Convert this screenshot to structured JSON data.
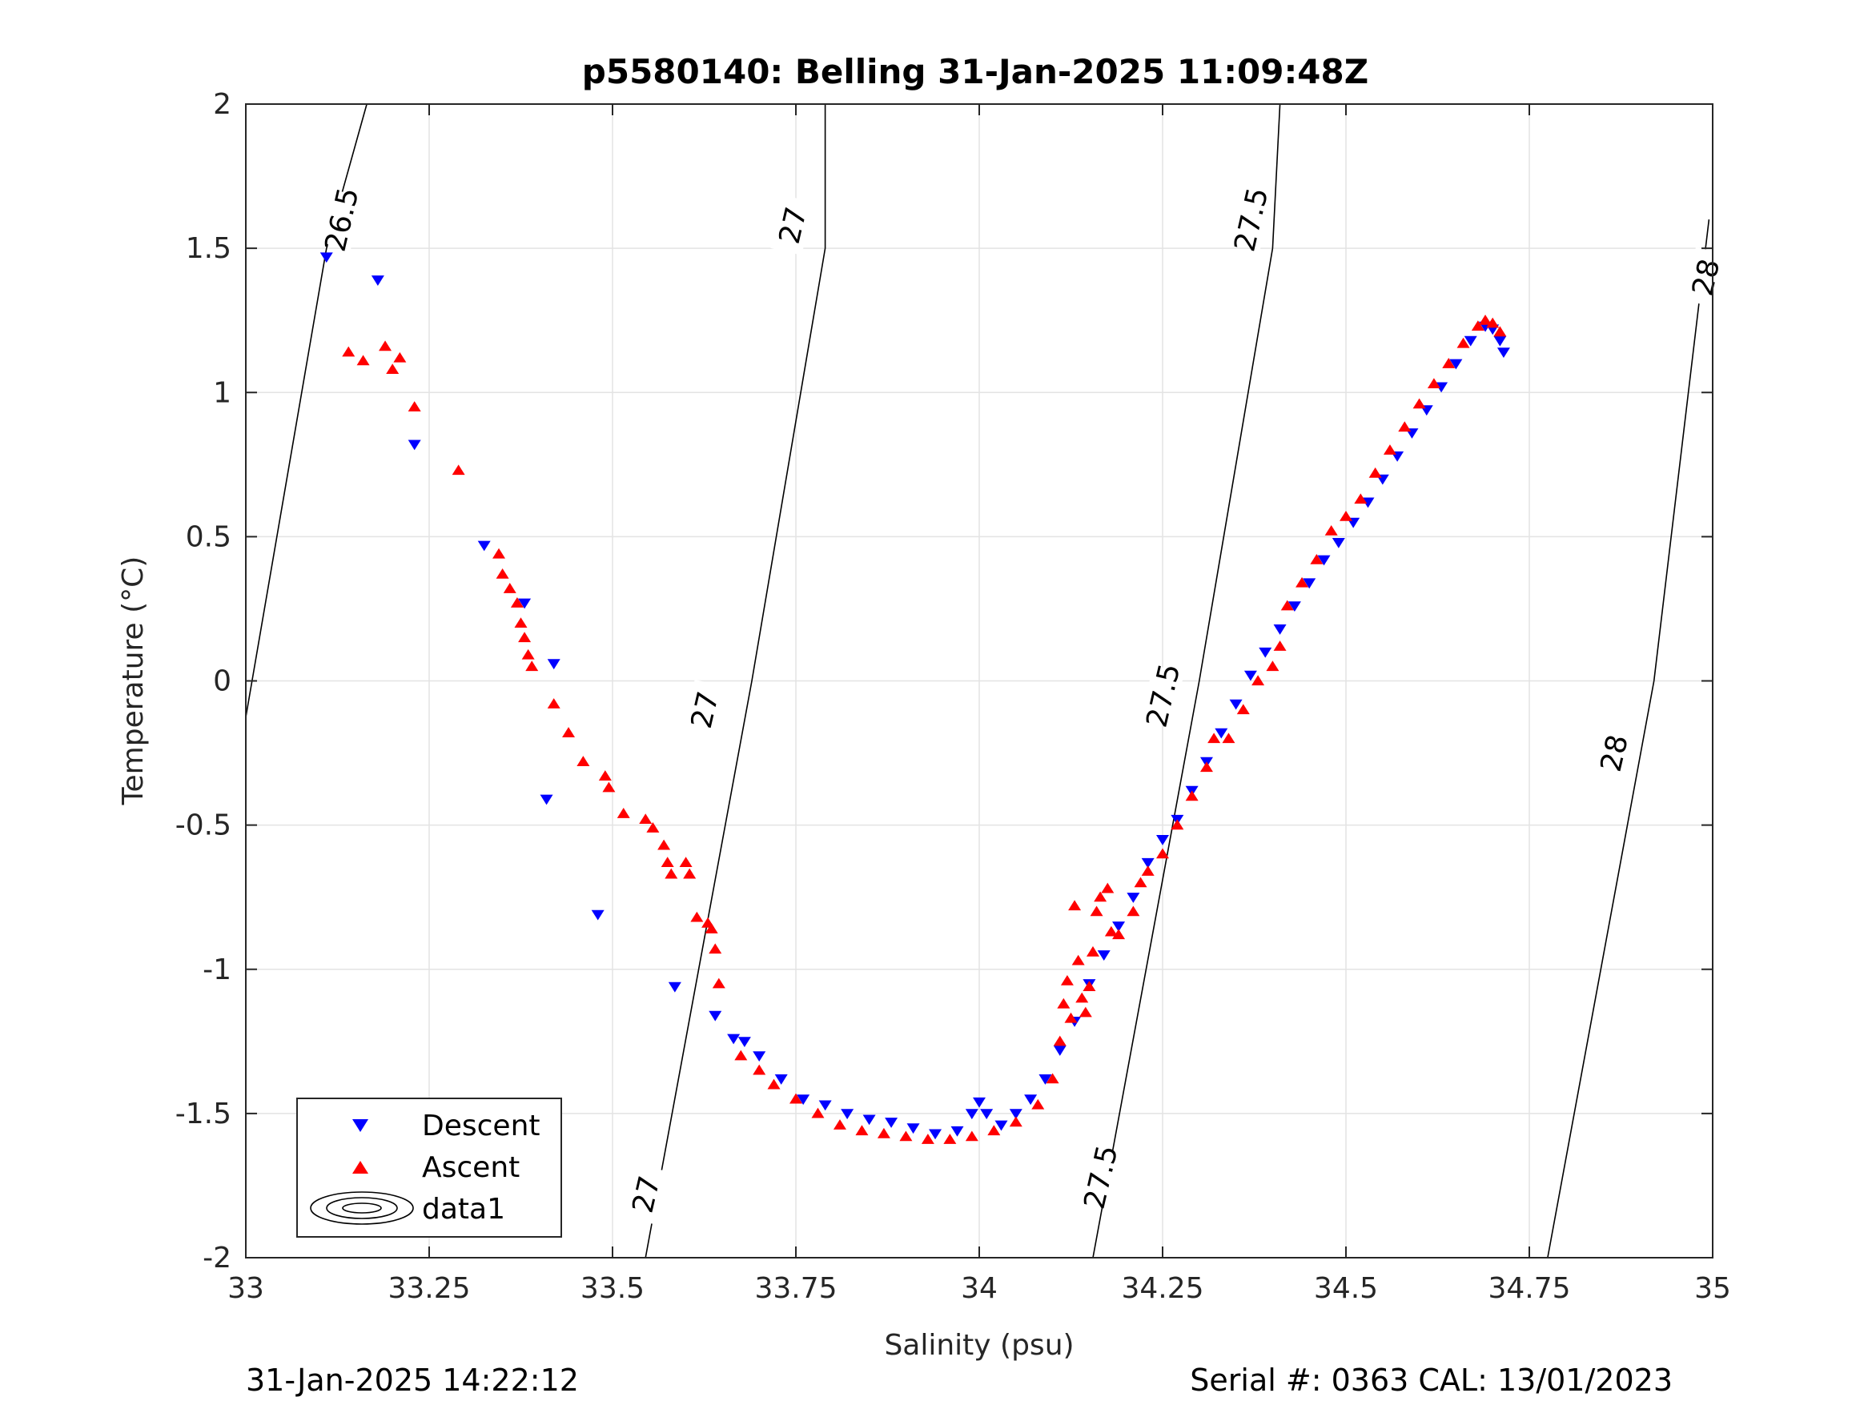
{
  "chart_data": {
    "type": "scatter",
    "title": "p5580140: Belling 31-Jan-2025 11:09:48Z",
    "xlabel": "Salinity (psu)",
    "ylabel": "Temperature (°C)",
    "xlim": [
      33,
      35
    ],
    "ylim": [
      -2,
      2
    ],
    "xticks": [
      "33",
      "33.25",
      "33.5",
      "33.75",
      "34",
      "34.25",
      "34.5",
      "34.75",
      "35"
    ],
    "yticks": [
      "-2",
      "-1.5",
      "-1",
      "-0.5",
      "0",
      "0.5",
      "1",
      "1.5",
      "2"
    ],
    "grid": true,
    "legend_position": "bottom-left",
    "legend": [
      "Descent",
      "Ascent",
      "data1"
    ],
    "colors": {
      "descent": "#0000ff",
      "ascent": "#ff0000",
      "contour": "#000000"
    },
    "footer_left": "31-Jan-2025 14:22:12",
    "footer_right": "Serial #: 0363  CAL: 13/01/2023",
    "density_contours": [
      {
        "label": "26.5",
        "points": [
          [
            32.995,
            -0.2
          ],
          [
            33.11,
            1.5
          ],
          [
            33.165,
            2.0
          ]
        ]
      },
      {
        "label": "27",
        "points": [
          [
            33.545,
            -2.0
          ],
          [
            33.69,
            0.0
          ],
          [
            33.79,
            1.5
          ],
          [
            33.79,
            2.0
          ]
        ]
      },
      {
        "label": "27.5",
        "points": [
          [
            34.155,
            -2.0
          ],
          [
            34.3,
            0.0
          ],
          [
            34.4,
            1.5
          ],
          [
            34.41,
            2.0
          ]
        ]
      },
      {
        "label": "28",
        "points": [
          [
            34.775,
            -2.0
          ],
          [
            34.92,
            0.0
          ],
          [
            34.995,
            1.6
          ]
        ]
      }
    ],
    "contour_labels": [
      {
        "text": "26.5",
        "x": 33.13,
        "y": 1.6
      },
      {
        "text": "27",
        "x": 33.745,
        "y": 1.58
      },
      {
        "text": "27",
        "x": 33.625,
        "y": -0.1
      },
      {
        "text": "27",
        "x": 33.545,
        "y": -1.78
      },
      {
        "text": "27.5",
        "x": 34.37,
        "y": 1.6
      },
      {
        "text": "27.5",
        "x": 34.25,
        "y": -0.05
      },
      {
        "text": "27.5",
        "x": 34.165,
        "y": -1.72
      },
      {
        "text": "28",
        "x": 34.99,
        "y": 1.4
      },
      {
        "text": "28",
        "x": 34.865,
        "y": -0.25
      }
    ],
    "series": [
      {
        "name": "Descent",
        "marker": "triangle-down",
        "points": [
          [
            33.11,
            1.47
          ],
          [
            33.18,
            1.39
          ],
          [
            33.23,
            0.82
          ],
          [
            33.325,
            0.47
          ],
          [
            33.38,
            0.27
          ],
          [
            33.42,
            0.06
          ],
          [
            33.41,
            -0.41
          ],
          [
            33.48,
            -0.81
          ],
          [
            33.585,
            -1.06
          ],
          [
            33.64,
            -1.16
          ],
          [
            33.665,
            -1.24
          ],
          [
            33.68,
            -1.25
          ],
          [
            33.7,
            -1.3
          ],
          [
            33.73,
            -1.38
          ],
          [
            33.76,
            -1.45
          ],
          [
            33.79,
            -1.47
          ],
          [
            33.82,
            -1.5
          ],
          [
            33.85,
            -1.52
          ],
          [
            33.88,
            -1.53
          ],
          [
            33.91,
            -1.55
          ],
          [
            33.94,
            -1.57
          ],
          [
            33.97,
            -1.56
          ],
          [
            33.99,
            -1.5
          ],
          [
            34.0,
            -1.46
          ],
          [
            34.01,
            -1.5
          ],
          [
            34.03,
            -1.54
          ],
          [
            34.05,
            -1.5
          ],
          [
            34.07,
            -1.45
          ],
          [
            34.09,
            -1.38
          ],
          [
            34.11,
            -1.28
          ],
          [
            34.13,
            -1.18
          ],
          [
            34.15,
            -1.05
          ],
          [
            34.17,
            -0.95
          ],
          [
            34.19,
            -0.85
          ],
          [
            34.21,
            -0.75
          ],
          [
            34.23,
            -0.63
          ],
          [
            34.25,
            -0.55
          ],
          [
            34.27,
            -0.48
          ],
          [
            34.29,
            -0.38
          ],
          [
            34.31,
            -0.28
          ],
          [
            34.33,
            -0.18
          ],
          [
            34.35,
            -0.08
          ],
          [
            34.37,
            0.02
          ],
          [
            34.39,
            0.1
          ],
          [
            34.41,
            0.18
          ],
          [
            34.43,
            0.26
          ],
          [
            34.45,
            0.34
          ],
          [
            34.47,
            0.42
          ],
          [
            34.49,
            0.48
          ],
          [
            34.51,
            0.55
          ],
          [
            34.53,
            0.62
          ],
          [
            34.55,
            0.7
          ],
          [
            34.57,
            0.78
          ],
          [
            34.59,
            0.86
          ],
          [
            34.61,
            0.94
          ],
          [
            34.63,
            1.02
          ],
          [
            34.65,
            1.1
          ],
          [
            34.67,
            1.18
          ],
          [
            34.69,
            1.23
          ],
          [
            34.7,
            1.22
          ],
          [
            34.71,
            1.18
          ],
          [
            34.715,
            1.14
          ]
        ]
      },
      {
        "name": "Ascent",
        "marker": "triangle-up",
        "points": [
          [
            33.14,
            1.14
          ],
          [
            33.16,
            1.11
          ],
          [
            33.19,
            1.16
          ],
          [
            33.2,
            1.08
          ],
          [
            33.21,
            1.12
          ],
          [
            33.23,
            0.95
          ],
          [
            33.29,
            0.73
          ],
          [
            33.345,
            0.44
          ],
          [
            33.35,
            0.37
          ],
          [
            33.36,
            0.32
          ],
          [
            33.37,
            0.27
          ],
          [
            33.375,
            0.2
          ],
          [
            33.38,
            0.15
          ],
          [
            33.385,
            0.09
          ],
          [
            33.39,
            0.05
          ],
          [
            33.42,
            -0.08
          ],
          [
            33.44,
            -0.18
          ],
          [
            33.46,
            -0.28
          ],
          [
            33.49,
            -0.33
          ],
          [
            33.495,
            -0.37
          ],
          [
            33.515,
            -0.46
          ],
          [
            33.545,
            -0.48
          ],
          [
            33.555,
            -0.51
          ],
          [
            33.57,
            -0.57
          ],
          [
            33.575,
            -0.63
          ],
          [
            33.58,
            -0.67
          ],
          [
            33.6,
            -0.63
          ],
          [
            33.605,
            -0.67
          ],
          [
            33.615,
            -0.82
          ],
          [
            33.63,
            -0.84
          ],
          [
            33.635,
            -0.86
          ],
          [
            33.64,
            -0.93
          ],
          [
            33.645,
            -1.05
          ],
          [
            33.675,
            -1.3
          ],
          [
            33.7,
            -1.35
          ],
          [
            33.72,
            -1.4
          ],
          [
            33.75,
            -1.45
          ],
          [
            33.78,
            -1.5
          ],
          [
            33.81,
            -1.54
          ],
          [
            33.84,
            -1.56
          ],
          [
            33.87,
            -1.57
          ],
          [
            33.9,
            -1.58
          ],
          [
            33.93,
            -1.59
          ],
          [
            33.96,
            -1.59
          ],
          [
            33.99,
            -1.58
          ],
          [
            34.02,
            -1.56
          ],
          [
            34.05,
            -1.53
          ],
          [
            34.08,
            -1.47
          ],
          [
            34.1,
            -1.38
          ],
          [
            34.11,
            -1.25
          ],
          [
            34.115,
            -1.12
          ],
          [
            34.12,
            -1.04
          ],
          [
            34.125,
            -1.17
          ],
          [
            34.13,
            -0.78
          ],
          [
            34.135,
            -0.97
          ],
          [
            34.14,
            -1.1
          ],
          [
            34.145,
            -1.15
          ],
          [
            34.15,
            -1.06
          ],
          [
            34.155,
            -0.94
          ],
          [
            34.16,
            -0.8
          ],
          [
            34.165,
            -0.75
          ],
          [
            34.175,
            -0.72
          ],
          [
            34.18,
            -0.87
          ],
          [
            34.19,
            -0.88
          ],
          [
            34.21,
            -0.8
          ],
          [
            34.22,
            -0.7
          ],
          [
            34.23,
            -0.66
          ],
          [
            34.25,
            -0.6
          ],
          [
            34.27,
            -0.5
          ],
          [
            34.29,
            -0.4
          ],
          [
            34.31,
            -0.3
          ],
          [
            34.32,
            -0.2
          ],
          [
            34.34,
            -0.2
          ],
          [
            34.36,
            -0.1
          ],
          [
            34.38,
            0.0
          ],
          [
            34.4,
            0.05
          ],
          [
            34.41,
            0.12
          ],
          [
            34.42,
            0.26
          ],
          [
            34.44,
            0.34
          ],
          [
            34.46,
            0.42
          ],
          [
            34.48,
            0.52
          ],
          [
            34.5,
            0.57
          ],
          [
            34.52,
            0.63
          ],
          [
            34.54,
            0.72
          ],
          [
            34.56,
            0.8
          ],
          [
            34.58,
            0.88
          ],
          [
            34.6,
            0.96
          ],
          [
            34.62,
            1.03
          ],
          [
            34.64,
            1.1
          ],
          [
            34.66,
            1.17
          ],
          [
            34.68,
            1.23
          ],
          [
            34.69,
            1.25
          ],
          [
            34.7,
            1.24
          ],
          [
            34.71,
            1.21
          ]
        ]
      }
    ]
  }
}
